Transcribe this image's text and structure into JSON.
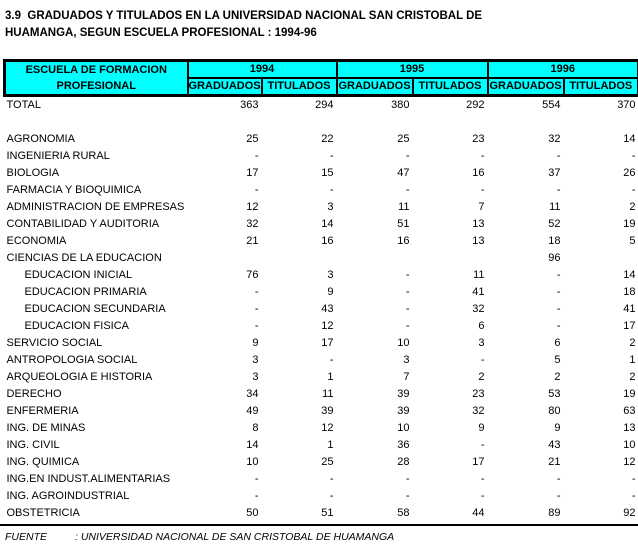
{
  "title": {
    "line1": "3.9  GRADUADOS Y TITULADOS EN LA UNIVERSIDAD NACIONAL SAN CRISTOBAL DE",
    "line2": "HUAMANGA, SEGUN ESCUELA PROFESIONAL : 1994-96"
  },
  "table": {
    "header": {
      "school_line1": "ESCUELA DE FORMACION",
      "school_line2": "PROFESIONAL",
      "years": [
        "1994",
        "1995",
        "1996"
      ],
      "sub_columns": [
        "GRADUADOS",
        "TITULADOS"
      ]
    },
    "rows": [
      {
        "label": "TOTAL",
        "values": [
          "363",
          "294",
          "380",
          "292",
          "554",
          "370"
        ]
      },
      {
        "spacer": true,
        "label": "",
        "values": [
          "",
          "",
          "",
          "",
          "",
          ""
        ]
      },
      {
        "label": "AGRONOMIA",
        "values": [
          "25",
          "22",
          "25",
          "23",
          "32",
          "14"
        ]
      },
      {
        "label": "INGENIERIA RURAL",
        "values": [
          "-",
          "-",
          "-",
          "-",
          "-",
          "-"
        ]
      },
      {
        "label": "BIOLOGIA",
        "values": [
          "17",
          "15",
          "47",
          "16",
          "37",
          "26"
        ]
      },
      {
        "label": "FARMACIA Y BIOQUIMICA",
        "values": [
          "-",
          "-",
          "-",
          "-",
          "-",
          "-"
        ]
      },
      {
        "label": "ADMINISTRACION DE EMPRESAS",
        "values": [
          "12",
          "3",
          "11",
          "7",
          "11",
          "2"
        ]
      },
      {
        "label": "CONTABILIDAD Y AUDITORIA",
        "values": [
          "32",
          "14",
          "51",
          "13",
          "52",
          "19"
        ]
      },
      {
        "label": "ECONOMIA",
        "values": [
          "21",
          "16",
          "16",
          "13",
          "18",
          "5"
        ]
      },
      {
        "label": "CIENCIAS DE LA EDUCACION",
        "values": [
          "",
          "",
          "",
          "",
          "96",
          ""
        ]
      },
      {
        "label": "EDUCACION INICIAL",
        "indent": true,
        "values": [
          "76",
          "3",
          "-",
          "11",
          "-",
          "14"
        ]
      },
      {
        "label": "EDUCACION PRIMARIA",
        "indent": true,
        "values": [
          "-",
          "9",
          "-",
          "41",
          "-",
          "18"
        ]
      },
      {
        "label": "EDUCACION SECUNDARIA",
        "indent": true,
        "values": [
          "-",
          "43",
          "-",
          "32",
          "-",
          "41"
        ]
      },
      {
        "label": "EDUCACION FISICA",
        "indent": true,
        "values": [
          "-",
          "12",
          "-",
          "6",
          "-",
          "17"
        ]
      },
      {
        "label": "SERVICIO SOCIAL",
        "values": [
          "9",
          "17",
          "10",
          "3",
          "6",
          "2"
        ]
      },
      {
        "label": "ANTROPOLOGIA SOCIAL",
        "values": [
          "3",
          "-",
          "3",
          "-",
          "5",
          "1"
        ]
      },
      {
        "label": "ARQUEOLOGIA E HISTORIA",
        "values": [
          "3",
          "1",
          "7",
          "2",
          "2",
          "2"
        ]
      },
      {
        "label": "DERECHO",
        "values": [
          "34",
          "11",
          "39",
          "23",
          "53",
          "19"
        ]
      },
      {
        "label": "ENFERMERIA",
        "values": [
          "49",
          "39",
          "39",
          "32",
          "80",
          "63"
        ]
      },
      {
        "label": "ING. DE MINAS",
        "values": [
          "8",
          "12",
          "10",
          "9",
          "9",
          "13"
        ]
      },
      {
        "label": "ING. CIVIL",
        "values": [
          "14",
          "1",
          "36",
          "-",
          "43",
          "10"
        ]
      },
      {
        "label": "ING. QUIMICA",
        "values": [
          "10",
          "25",
          "28",
          "17",
          "21",
          "12"
        ]
      },
      {
        "label": "ING.EN INDUST.ALIMENTARIAS",
        "values": [
          "-",
          "-",
          "-",
          "-",
          "-",
          "-"
        ]
      },
      {
        "label": "ING. AGROINDUSTRIAL",
        "values": [
          "-",
          "-",
          "-",
          "-",
          "-",
          "-"
        ]
      },
      {
        "label": "OBSTETRICIA",
        "values": [
          "50",
          "51",
          "58",
          "44",
          "89",
          "92"
        ]
      }
    ]
  },
  "footer": {
    "label": "FUENTE",
    "text": ": UNIVERSIDAD NACIONAL DE SAN CRISTOBAL DE HUAMANGA"
  },
  "colors": {
    "header_bg": "#00ffff",
    "border": "#000000",
    "text": "#000000"
  }
}
